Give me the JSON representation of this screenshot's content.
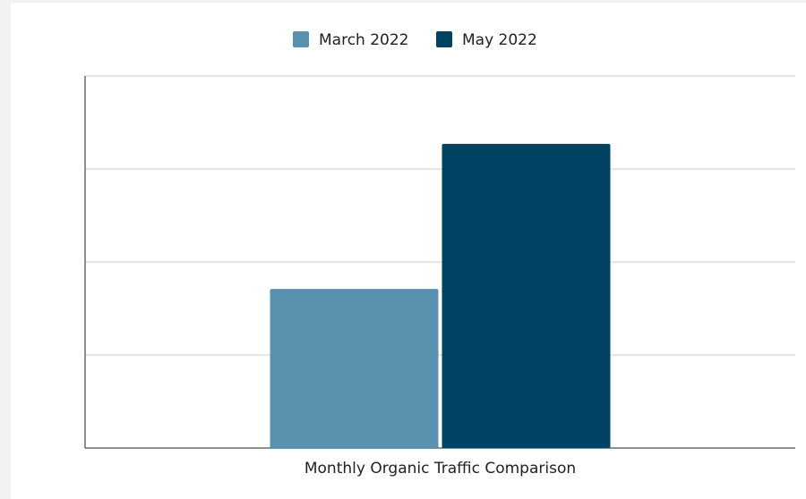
{
  "chart_data": {
    "type": "bar",
    "categories": [
      "Monthly Organic Traffic Comparison"
    ],
    "series": [
      {
        "name": "March 2022",
        "color": "#5a91ae",
        "values": [
          1.71
        ]
      },
      {
        "name": "May 2022",
        "color": "#004261",
        "values": [
          3.27
        ]
      }
    ],
    "ylim": [
      0,
      4
    ],
    "yticks": [
      0,
      1,
      2,
      3,
      4
    ],
    "grid": true,
    "legend": "top"
  }
}
